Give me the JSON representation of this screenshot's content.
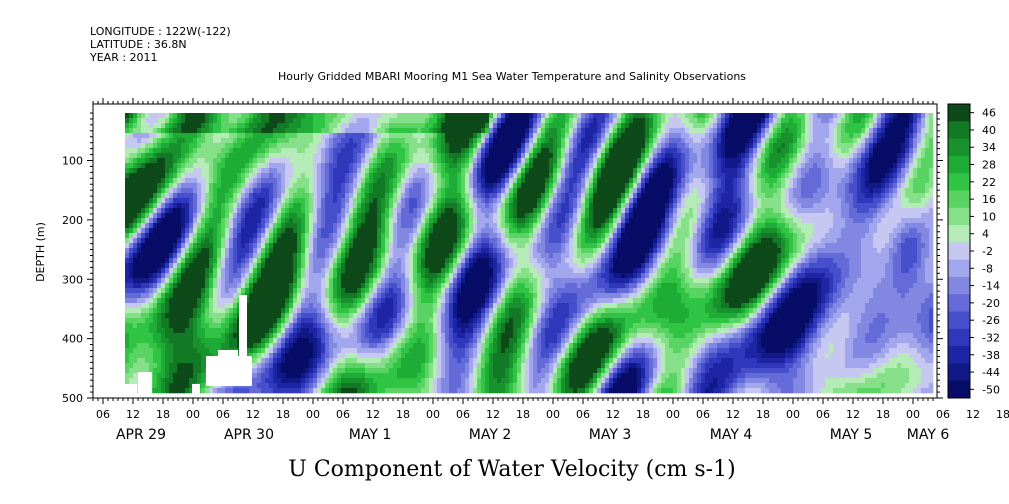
{
  "header": {
    "longitude": "LONGITUDE : 122W(-122)",
    "latitude": "LATITUDE : 36.8N",
    "year": "YEAR : 2011"
  },
  "chart_data": {
    "type": "heatmap",
    "title": "Hourly Gridded MBARI Mooring M1 Sea Water Temperature and Salinity Observations",
    "xlabel_main": "U Component of Water Velocity (cm s-1)",
    "ylabel": "DEPTH (m)",
    "y_axis": {
      "range": [
        500,
        20
      ],
      "inverted": true,
      "ticks": [
        100,
        200,
        300,
        400,
        500
      ]
    },
    "x_axis": {
      "hour_ticks": [
        "06",
        "12",
        "18",
        "00",
        "06",
        "12",
        "18",
        "00",
        "06",
        "12",
        "18",
        "00",
        "06",
        "12",
        "18",
        "00",
        "06",
        "12",
        "18",
        "00",
        "06",
        "12",
        "18",
        "00",
        "06",
        "12",
        "18",
        "00",
        "06",
        "12",
        "18",
        "00",
        "06",
        "12",
        "18",
        "00",
        "06",
        "12",
        "18",
        "00",
        "06"
      ],
      "day_labels": [
        "APR 29",
        "APR 30",
        "MAY 1",
        "MAY 2",
        "MAY 3",
        "MAY 4",
        "MAY 5",
        "MAY 6"
      ]
    },
    "colorbar": {
      "labels": [
        "46",
        "40",
        "34",
        "28",
        "22",
        "16",
        "10",
        "4",
        "-2",
        "-8",
        "-14",
        "-20",
        "-26",
        "-32",
        "-38",
        "-44",
        "-50"
      ],
      "colors": [
        "#0e4a19",
        "#127a24",
        "#17922c",
        "#1fac36",
        "#2fc444",
        "#59d462",
        "#86e08a",
        "#b4ebb6",
        "#c6c8f2",
        "#a2a6ec",
        "#8288e2",
        "#646bd9",
        "#4750cc",
        "#2f38bb",
        "#1d25a4",
        "#111888",
        "#070c66"
      ]
    },
    "depth_range": [
      20,
      485
    ],
    "time_span": "APR 28 18:00 to MAY 6 00:00"
  }
}
